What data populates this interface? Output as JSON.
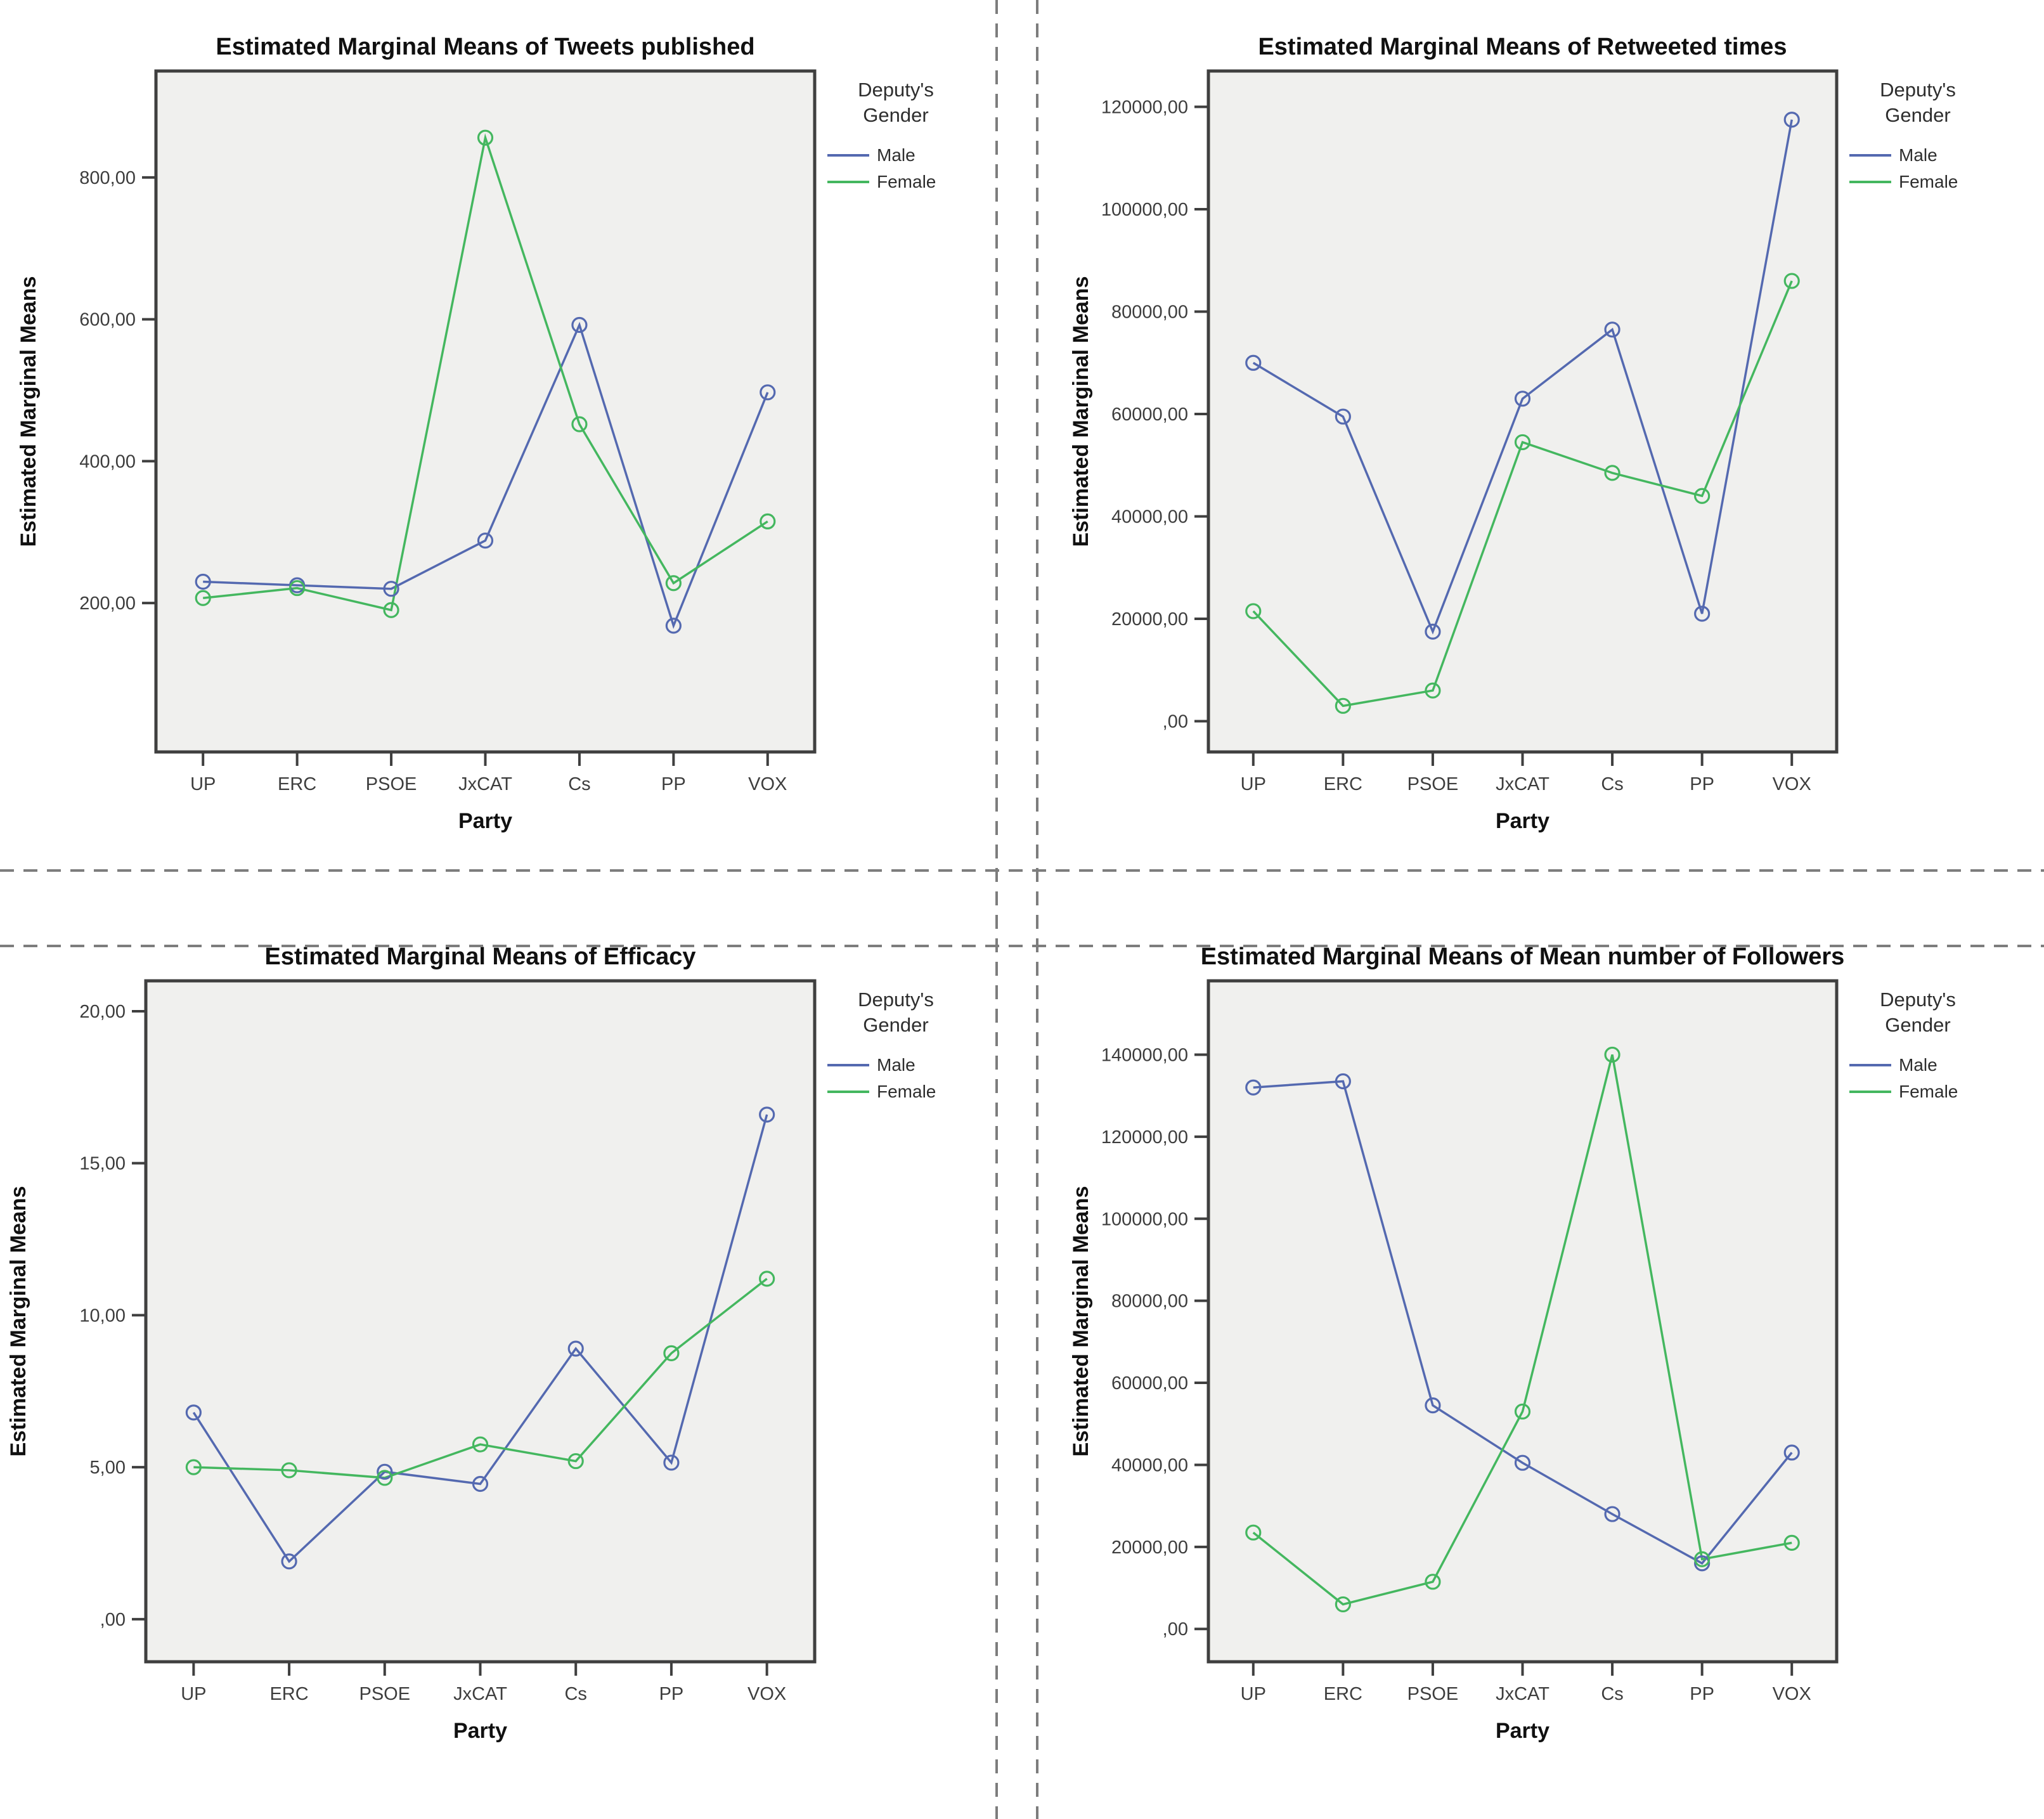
{
  "page": {
    "background": "#ffffff",
    "divider_color": "#7d7d7d"
  },
  "colors": {
    "male": "#5469b0",
    "female": "#44b75f",
    "plot_bg": "#f0f0ee",
    "frame": "#3f3f3f",
    "tick_label": "#3d3d3d",
    "title": "#101010",
    "legend_text": "#2e2e2e"
  },
  "chart_data": [
    {
      "type": "line",
      "title": "Estimated Marginal Means of Tweets published",
      "xlabel": "Party",
      "ylabel": "Estimated Marginal Means",
      "categories": [
        "UP",
        "ERC",
        "PSOE",
        "JxCAT",
        "Cs",
        "PP",
        "VOX"
      ],
      "legend": {
        "title_lines": [
          "Deputy's",
          "Gender"
        ]
      },
      "yticks": [
        {
          "label": "200,00",
          "value": 200
        },
        {
          "label": "400,00",
          "value": 400
        },
        {
          "label": "600,00",
          "value": 600
        },
        {
          "label": "800,00",
          "value": 800
        }
      ],
      "ylim": [
        -10,
        950
      ],
      "grid": false,
      "legend_position": "right",
      "series": [
        {
          "name": "Male",
          "color_key": "male",
          "values": [
            230,
            225,
            220,
            288,
            592,
            168,
            497
          ]
        },
        {
          "name": "Female",
          "color_key": "female",
          "values": [
            207,
            221,
            190,
            856,
            452,
            228,
            315
          ]
        }
      ]
    },
    {
      "type": "line",
      "title": "Estimated Marginal Means of Retweeted times",
      "xlabel": "Party",
      "ylabel": "Estimated Marginal Means",
      "categories": [
        "UP",
        "ERC",
        "PSOE",
        "JxCAT",
        "Cs",
        "PP",
        "VOX"
      ],
      "legend": {
        "title_lines": [
          "Deputy's",
          "Gender"
        ]
      },
      "yticks": [
        {
          "label": ",00",
          "value": 0
        },
        {
          "label": "20000,00",
          "value": 20000
        },
        {
          "label": "40000,00",
          "value": 40000
        },
        {
          "label": "60000,00",
          "value": 60000
        },
        {
          "label": "80000,00",
          "value": 80000
        },
        {
          "label": "100000,00",
          "value": 100000
        },
        {
          "label": "120000,00",
          "value": 120000
        }
      ],
      "ylim": [
        -6000,
        127000
      ],
      "grid": false,
      "legend_position": "right",
      "series": [
        {
          "name": "Male",
          "color_key": "male",
          "values": [
            70000,
            59500,
            17500,
            63000,
            76500,
            21000,
            117500
          ]
        },
        {
          "name": "Female",
          "color_key": "female",
          "values": [
            21500,
            3000,
            6000,
            54500,
            48500,
            44000,
            86000
          ]
        }
      ]
    },
    {
      "type": "line",
      "title": "Estimated Marginal Means of Efficacy",
      "xlabel": "Party",
      "ylabel": "Estimated Marginal Means",
      "categories": [
        "UP",
        "ERC",
        "PSOE",
        "JxCAT",
        "Cs",
        "PP",
        "VOX"
      ],
      "legend": {
        "title_lines": [
          "Deputy's",
          "Gender"
        ]
      },
      "yticks": [
        {
          "label": ",00",
          "value": 0
        },
        {
          "label": "5,00",
          "value": 5
        },
        {
          "label": "10,00",
          "value": 10
        },
        {
          "label": "15,00",
          "value": 15
        },
        {
          "label": "20,00",
          "value": 20
        }
      ],
      "ylim": [
        -1.4,
        21
      ],
      "grid": false,
      "legend_position": "right",
      "series": [
        {
          "name": "Male",
          "color_key": "male",
          "values": [
            6.8,
            1.9,
            4.85,
            4.45,
            8.9,
            5.15,
            16.6
          ]
        },
        {
          "name": "Female",
          "color_key": "female",
          "values": [
            5.0,
            4.9,
            4.65,
            5.75,
            5.2,
            8.75,
            11.2
          ]
        }
      ]
    },
    {
      "type": "line",
      "title": "Estimated Marginal Means of Mean number of Followers",
      "xlabel": "Party",
      "ylabel": "Estimated Marginal Means",
      "categories": [
        "UP",
        "ERC",
        "PSOE",
        "JxCAT",
        "Cs",
        "PP",
        "VOX"
      ],
      "legend": {
        "title_lines": [
          "Deputy's",
          "Gender"
        ]
      },
      "yticks": [
        {
          "label": ",00",
          "value": 0
        },
        {
          "label": "20000,00",
          "value": 20000
        },
        {
          "label": "40000,00",
          "value": 40000
        },
        {
          "label": "60000,00",
          "value": 60000
        },
        {
          "label": "80000,00",
          "value": 80000
        },
        {
          "label": "100000,00",
          "value": 100000
        },
        {
          "label": "120000,00",
          "value": 120000
        },
        {
          "label": "140000,00",
          "value": 140000
        }
      ],
      "ylim": [
        -8000,
        158000
      ],
      "grid": false,
      "legend_position": "right",
      "series": [
        {
          "name": "Male",
          "color_key": "male",
          "values": [
            132000,
            133500,
            54500,
            40500,
            28000,
            16000,
            43000
          ]
        },
        {
          "name": "Female",
          "color_key": "female",
          "values": [
            23500,
            6000,
            11500,
            53000,
            140000,
            17000,
            21000
          ]
        }
      ]
    }
  ]
}
